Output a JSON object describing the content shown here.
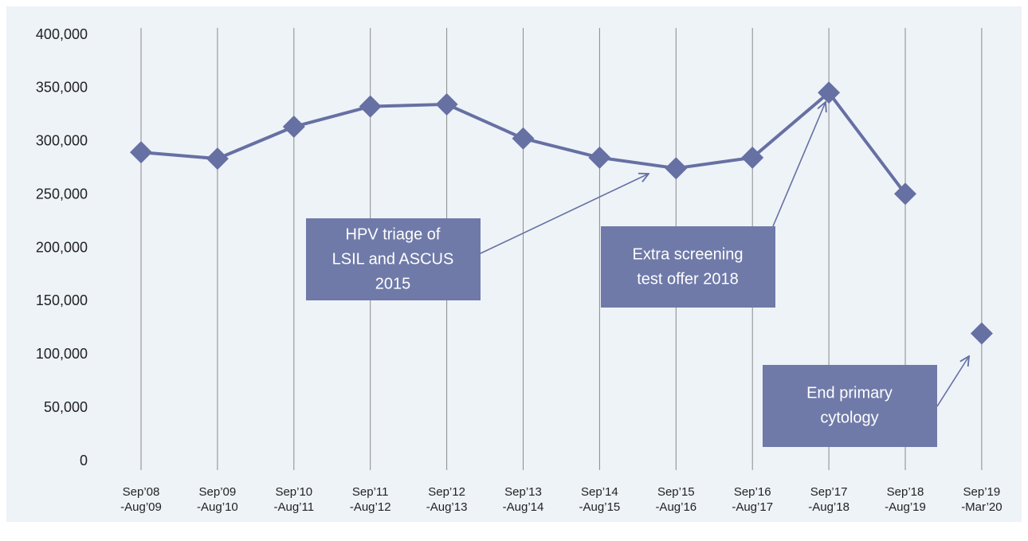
{
  "chart_data": {
    "type": "line",
    "categories": [
      [
        "Sep’08",
        "-Aug’09"
      ],
      [
        "Sep’09",
        "-Aug’10"
      ],
      [
        "Sep’10",
        "-Aug’11"
      ],
      [
        "Sep’11",
        "-Aug’12"
      ],
      [
        "Sep’12",
        "-Aug’13"
      ],
      [
        "Sep’13",
        "-Aug’14"
      ],
      [
        "Sep’14",
        "-Aug’15"
      ],
      [
        "Sep’15",
        "-Aug’16"
      ],
      [
        "Sep’16",
        "-Aug’17"
      ],
      [
        "Sep’17",
        "-Aug’18"
      ],
      [
        "Sep’18",
        "-Aug’19"
      ],
      [
        "Sep’19",
        "-Mar’20"
      ]
    ],
    "series": [
      {
        "color": "#6670a3",
        "values": [
          290000,
          284000,
          314000,
          333000,
          335000,
          303000,
          285000,
          275000,
          285000,
          346000,
          251000,
          null
        ]
      },
      {
        "color": "#6670a3",
        "values": [
          null,
          null,
          null,
          null,
          null,
          null,
          null,
          null,
          null,
          null,
          null,
          120000
        ]
      }
    ],
    "ylim": [
      0,
      400000
    ],
    "yticks": [
      0,
      {
        "value": 50000,
        "label": "50,000"
      },
      {
        "value": 100000,
        "label": "100,000"
      },
      {
        "value": 150000,
        "label": "150,000"
      },
      {
        "value": 200000,
        "label": "200,000"
      },
      {
        "value": 250000,
        "label": "250,000"
      },
      {
        "value": 300000,
        "label": "300,000"
      },
      {
        "value": 350000,
        "label": "350,000"
      },
      {
        "value": 400000,
        "label": "400,000"
      }
    ],
    "grid": true,
    "annotations": [
      [
        "HPV triage of",
        "LSIL and ASCUS",
        "2015"
      ],
      [
        "Extra screening",
        "test offer 2018"
      ],
      [
        "End primary",
        "cytology"
      ]
    ]
  }
}
